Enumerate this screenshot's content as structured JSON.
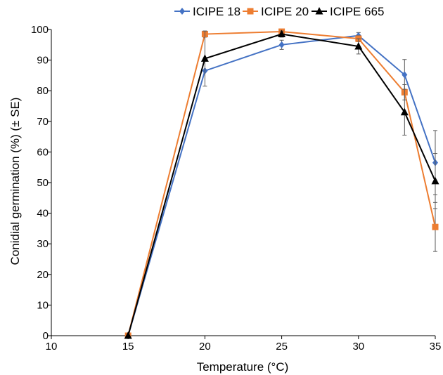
{
  "chart_data": {
    "type": "line",
    "title": "",
    "xlabel": "Temperature (°C)",
    "ylabel": "Conidial germination (%) (± SE)",
    "xlim": [
      10,
      35
    ],
    "ylim": [
      0,
      100
    ],
    "x_ticks": [
      10,
      15,
      20,
      25,
      30,
      35
    ],
    "y_ticks": [
      0,
      10,
      20,
      30,
      40,
      50,
      60,
      70,
      80,
      90,
      100
    ],
    "grid": false,
    "legend_position": "top",
    "x": [
      15,
      20,
      25,
      30,
      33,
      35
    ],
    "series": [
      {
        "name": "ICIPE 18",
        "color": "#4472C4",
        "marker": "diamond",
        "values": [
          0,
          86.5,
          95,
          98,
          85.2,
          56.5
        ],
        "errors": [
          0,
          0,
          1.5,
          1.0,
          5.0,
          10.5
        ]
      },
      {
        "name": "ICIPE 20",
        "color": "#ED7D31",
        "marker": "square",
        "values": [
          0,
          98.5,
          99.3,
          97,
          79.5,
          35.5
        ],
        "errors": [
          0,
          1.0,
          0.5,
          1.0,
          2.5,
          8.0
        ]
      },
      {
        "name": "ICIPE 665",
        "color": "#000000",
        "marker": "triangle",
        "values": [
          0,
          90.5,
          98.5,
          94.5,
          73,
          50.5
        ],
        "errors": [
          0,
          9.0,
          1.0,
          2.5,
          7.5,
          9.0
        ]
      }
    ]
  }
}
